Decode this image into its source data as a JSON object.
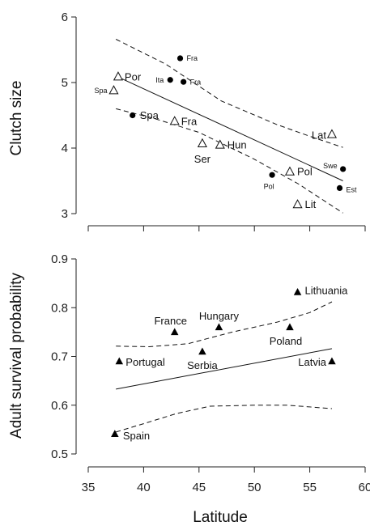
{
  "chart_data": [
    {
      "type": "scatter",
      "ylabel": "Clutch size",
      "xlabel": "",
      "xlim": [
        35,
        60
      ],
      "ylim": [
        2.9,
        6.15
      ],
      "xticks": [
        35,
        40,
        45,
        50,
        55,
        60
      ],
      "yticks": [
        3,
        4,
        5,
        6
      ],
      "grid": false,
      "series": [
        {
          "marker": "filled-circle",
          "points": [
            {
              "x": 43.3,
              "y": 5.37,
              "label": "Fra",
              "small": true
            },
            {
              "x": 42.4,
              "y": 5.04,
              "label": "Ita",
              "small": true
            },
            {
              "x": 43.6,
              "y": 5.01,
              "label": "Fra",
              "small": true
            },
            {
              "x": 39.0,
              "y": 4.5,
              "label": "Spa",
              "small": false
            },
            {
              "x": 51.6,
              "y": 3.59,
              "label": "Pol",
              "small": true
            },
            {
              "x": 58.0,
              "y": 3.68,
              "label": "Swe",
              "small": true
            },
            {
              "x": 57.7,
              "y": 3.39,
              "label": "Est",
              "small": true
            }
          ]
        },
        {
          "marker": "open-triangle",
          "points": [
            {
              "x": 37.7,
              "y": 5.09,
              "label": "Por",
              "small": false
            },
            {
              "x": 37.3,
              "y": 4.88,
              "label": "Spa",
              "small": true
            },
            {
              "x": 42.8,
              "y": 4.41,
              "label": "Fra",
              "small": false
            },
            {
              "x": 45.3,
              "y": 4.07,
              "label": "Ser",
              "small": false
            },
            {
              "x": 46.9,
              "y": 4.05,
              "label": "Hun",
              "small": false
            },
            {
              "x": 53.2,
              "y": 3.64,
              "label": "Pol",
              "small": false
            },
            {
              "x": 57.0,
              "y": 4.21,
              "label": "Lat",
              "small": false
            },
            {
              "x": 53.9,
              "y": 3.14,
              "label": "Lit",
              "small": false
            }
          ]
        }
      ],
      "fit": {
        "x": [
          37.5,
          58.0
        ],
        "y": [
          5.1,
          3.5
        ]
      },
      "ci_upper": {
        "x": [
          37.5,
          42.0,
          47.0,
          52.0,
          55.0,
          58.0
        ],
        "y": [
          5.66,
          5.28,
          4.72,
          4.36,
          4.18,
          4.01
        ]
      },
      "ci_lower": {
        "x": [
          37.5,
          41.0,
          45.0,
          50.0,
          54.0,
          58.0
        ],
        "y": [
          4.6,
          4.45,
          4.24,
          3.83,
          3.45,
          3.01
        ]
      }
    },
    {
      "type": "scatter",
      "ylabel": "Adult survival probability",
      "xlabel": "Latitude",
      "xlim": [
        35,
        60
      ],
      "ylim": [
        0.485,
        0.915
      ],
      "xticks": [
        35,
        40,
        45,
        50,
        55,
        60
      ],
      "yticks": [
        0.5,
        0.6,
        0.7,
        0.8,
        0.9
      ],
      "grid": false,
      "series": [
        {
          "marker": "filled-triangle",
          "points": [
            {
              "x": 53.9,
              "y": 0.832,
              "label": "Lithuania"
            },
            {
              "x": 42.8,
              "y": 0.75,
              "label": "France"
            },
            {
              "x": 46.8,
              "y": 0.76,
              "label": "Hungary"
            },
            {
              "x": 53.2,
              "y": 0.76,
              "label": "Poland"
            },
            {
              "x": 37.8,
              "y": 0.69,
              "label": "Portugal"
            },
            {
              "x": 45.3,
              "y": 0.71,
              "label": "Serbia"
            },
            {
              "x": 57.0,
              "y": 0.69,
              "label": "Latvia"
            },
            {
              "x": 37.4,
              "y": 0.541,
              "label": "Spain"
            }
          ]
        }
      ],
      "fit": {
        "x": [
          37.5,
          57.0
        ],
        "y": [
          0.633,
          0.716
        ]
      },
      "ci_upper": {
        "x": [
          37.5,
          40.5,
          44.0,
          48.0,
          52.0,
          55.0,
          57.0
        ],
        "y": [
          0.721,
          0.72,
          0.726,
          0.75,
          0.77,
          0.79,
          0.812
        ]
      },
      "ci_lower": {
        "x": [
          37.5,
          40.0,
          43.0,
          46.0,
          50.0,
          53.0,
          57.0
        ],
        "y": [
          0.545,
          0.562,
          0.583,
          0.598,
          0.6,
          0.6,
          0.593
        ]
      }
    }
  ]
}
